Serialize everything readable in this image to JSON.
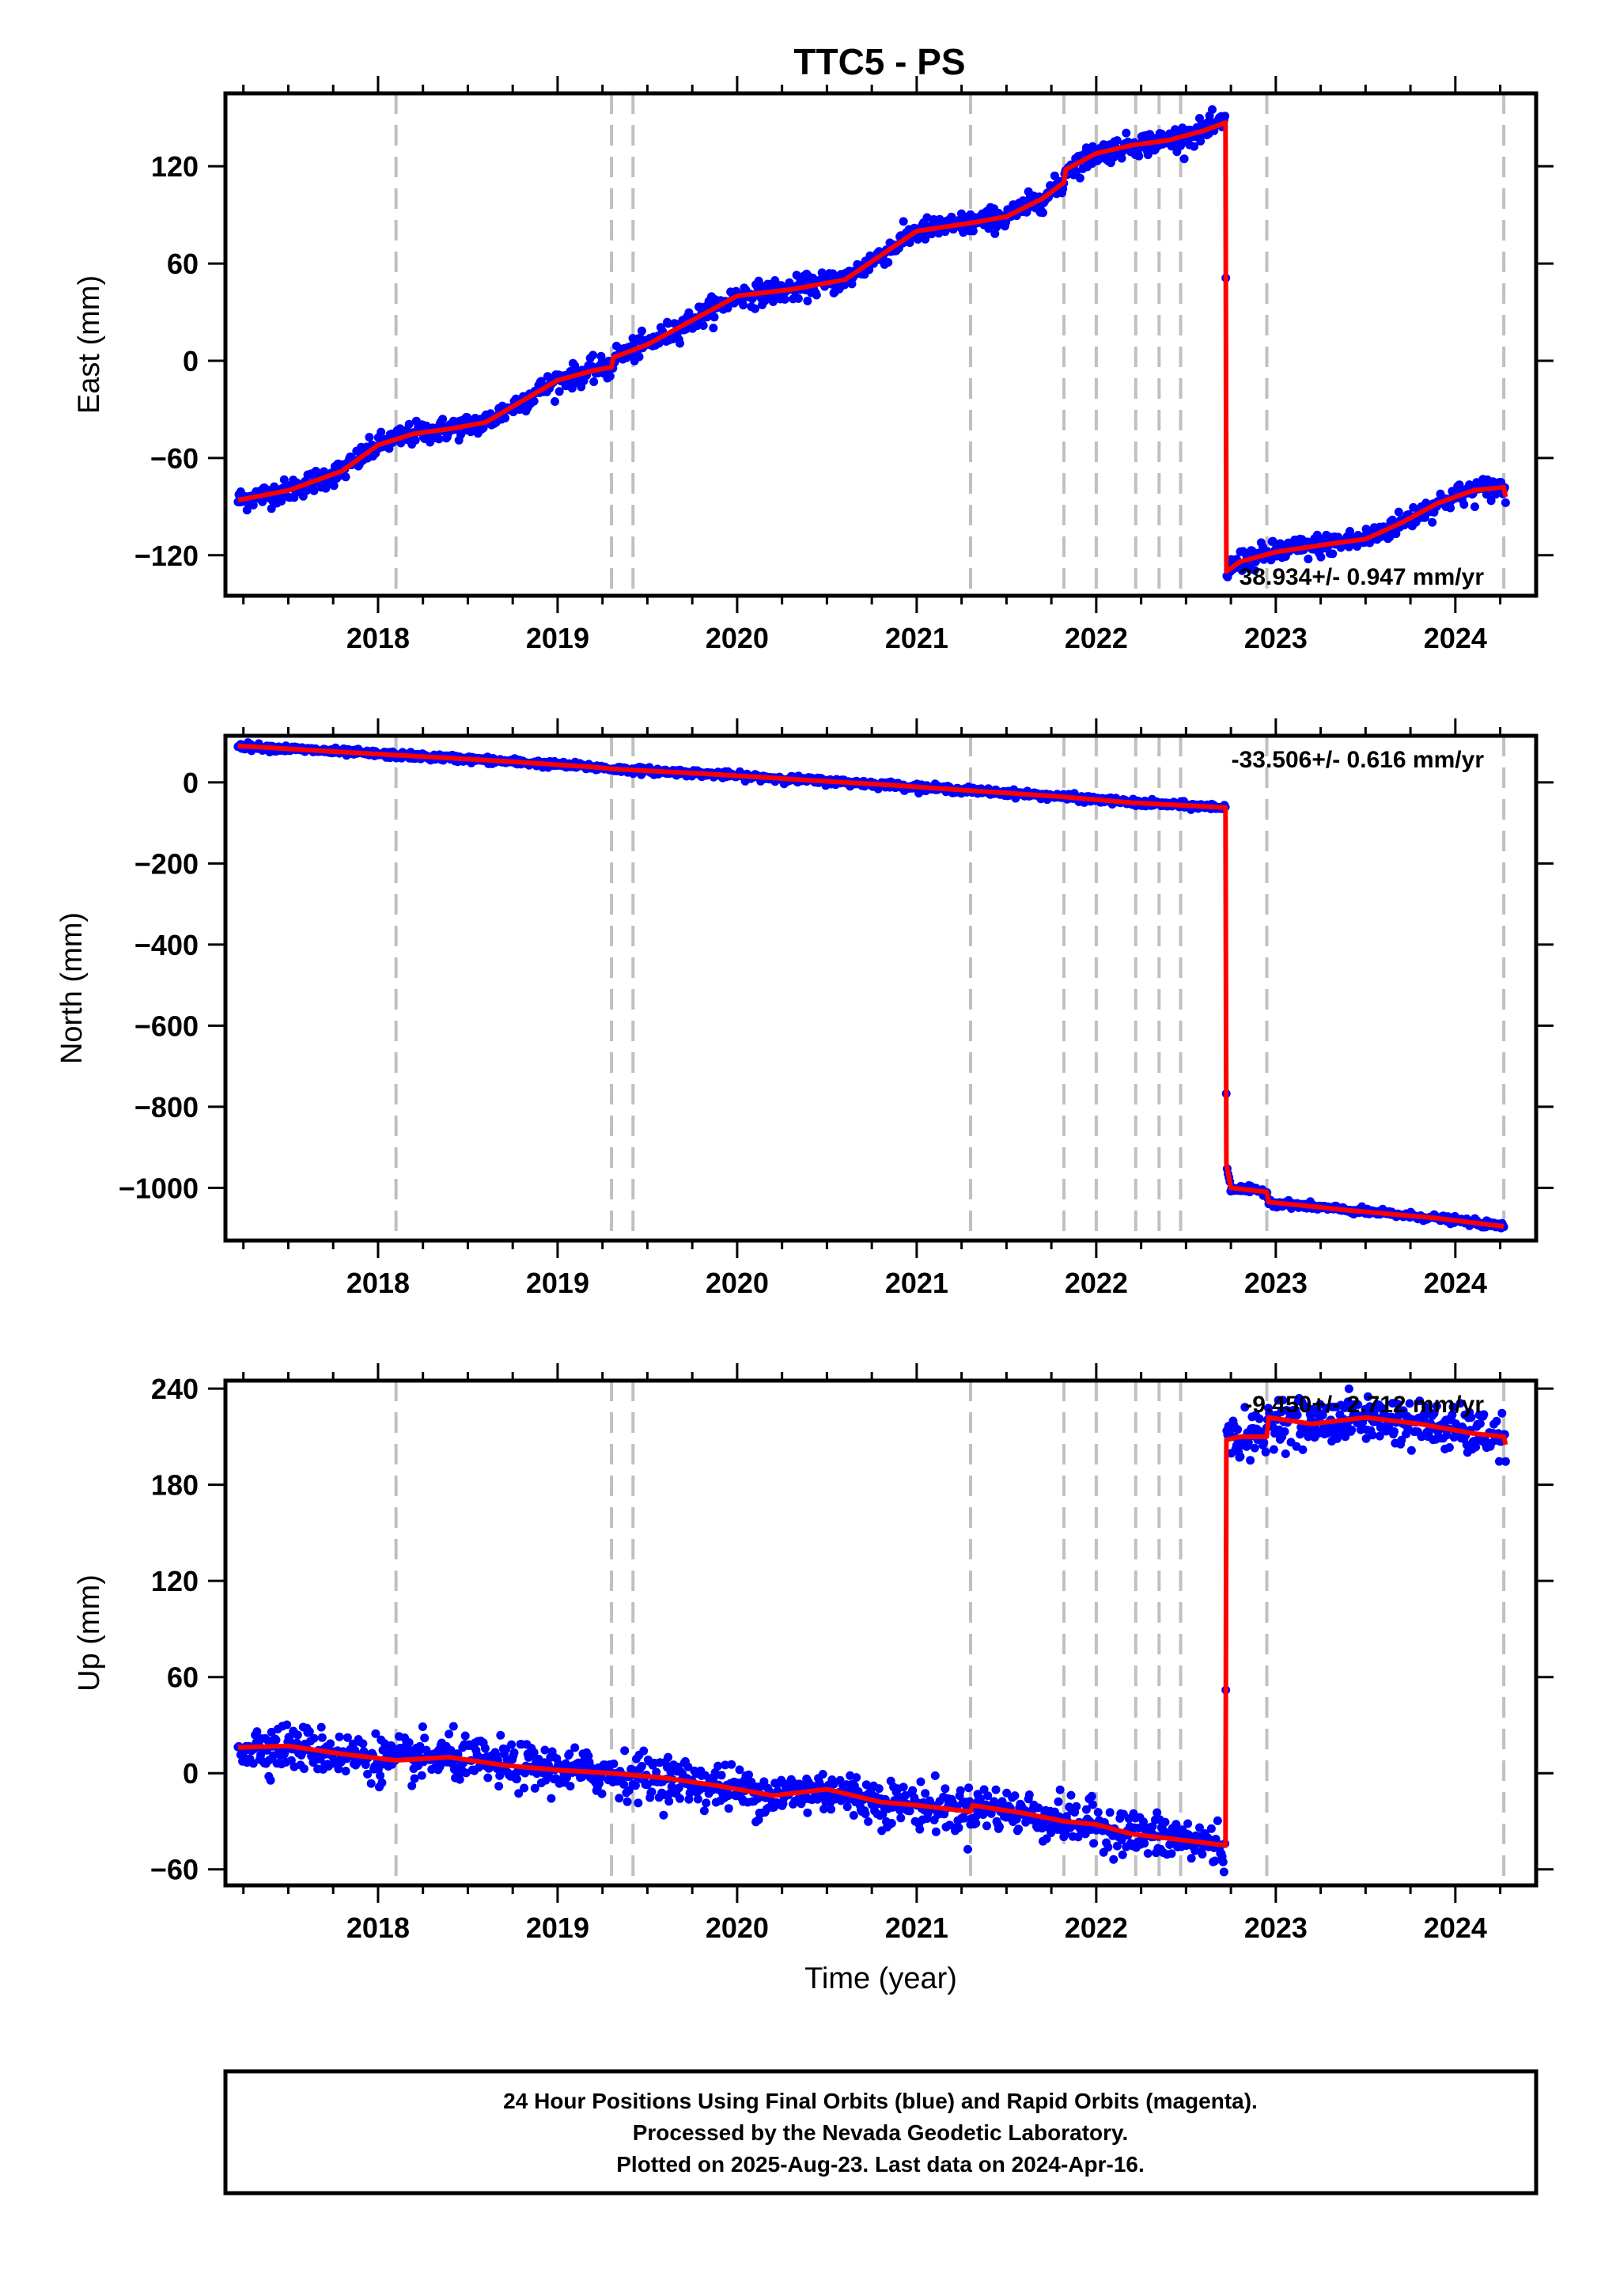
{
  "title": "TTC5 - PS",
  "footer": {
    "line1": "24 Hour Positions Using Final Orbits (blue) and Rapid Orbits (magenta).",
    "line2": "Processed by the Nevada Geodetic Laboratory.",
    "line3": "Plotted on 2025-Aug-23. Last data on 2024-Apr-16."
  },
  "colors": {
    "final_orbits": "#0000ff",
    "model": "#ff0000",
    "event_lines": "#c0c0c0",
    "frame": "#000000"
  },
  "chart_data": [
    {
      "type": "scatter",
      "name": "east",
      "ylabel": "East (mm)",
      "xlabel": "",
      "xlim": [
        2017.15,
        2024.45
      ],
      "ylim": [
        -145,
        165
      ],
      "xticks": [
        2018,
        2019,
        2020,
        2021,
        2022,
        2023,
        2024
      ],
      "yticks": [
        -120,
        -60,
        0,
        60,
        120
      ],
      "rate_label": "38.934+/- 0.947 mm/yr",
      "rate_position": "bottom-right",
      "offset_lines": [
        2018.1,
        2019.3,
        2019.42,
        2021.3,
        2021.82,
        2022.0,
        2022.22,
        2022.35,
        2022.47,
        2022.95,
        2024.27
      ],
      "model": {
        "x": [
          2017.22,
          2017.5,
          2017.8,
          2018.0,
          2018.2,
          2018.4,
          2018.6,
          2018.8,
          2019.0,
          2019.2,
          2019.3,
          2019.31,
          2019.5,
          2019.8,
          2020.0,
          2020.3,
          2020.6,
          2020.8,
          2021.0,
          2021.3,
          2021.5,
          2021.7,
          2021.82,
          2021.83,
          2022.0,
          2022.2,
          2022.4,
          2022.6,
          2022.72,
          2022.725,
          2022.8,
          2023.0,
          2023.3,
          2023.5,
          2023.7,
          2023.9,
          2024.1,
          2024.27,
          2024.28
        ],
        "y": [
          -86,
          -80,
          -68,
          -52,
          -45,
          -42,
          -38,
          -25,
          -12,
          -6,
          -4,
          2,
          10,
          28,
          40,
          44,
          50,
          65,
          80,
          85,
          89,
          100,
          110,
          118,
          128,
          133,
          136,
          142,
          147,
          -130,
          -124,
          -118,
          -113,
          -110,
          -100,
          -88,
          -80,
          -78,
          -84
        ]
      },
      "scatter_spread": 3.5
    },
    {
      "type": "scatter",
      "name": "north",
      "ylabel": "North (mm)",
      "xlabel": "",
      "xlim": [
        2017.15,
        2024.45
      ],
      "ylim": [
        -1130,
        115
      ],
      "xticks": [
        2018,
        2019,
        2020,
        2021,
        2022,
        2023,
        2024
      ],
      "yticks": [
        -1000,
        -800,
        -600,
        -400,
        -200,
        0
      ],
      "rate_label": "-33.506+/- 0.616 mm/yr",
      "rate_position": "top-right",
      "offset_lines": [
        2018.1,
        2019.3,
        2019.42,
        2021.3,
        2021.82,
        2022.0,
        2022.22,
        2022.35,
        2022.47,
        2022.95,
        2024.27
      ],
      "model": {
        "x": [
          2017.22,
          2018.0,
          2018.6,
          2019.2,
          2019.31,
          2019.8,
          2020.3,
          2020.8,
          2021.3,
          2021.8,
          2022.2,
          2022.5,
          2022.72,
          2022.725,
          2022.75,
          2022.95,
          2022.96,
          2023.4,
          2023.9,
          2024.27
        ],
        "y": [
          90,
          70,
          55,
          38,
          33,
          22,
          8,
          -5,
          -20,
          -35,
          -50,
          -57,
          -62,
          -940,
          -1000,
          -1010,
          -1035,
          -1055,
          -1075,
          -1095
        ]
      },
      "scatter_spread": 4
    },
    {
      "type": "scatter",
      "name": "up",
      "ylabel": "Up (mm)",
      "xlabel": "Time (year)",
      "xlim": [
        2017.15,
        2024.45
      ],
      "ylim": [
        -70,
        245
      ],
      "xticks": [
        2018,
        2019,
        2020,
        2021,
        2022,
        2023,
        2024
      ],
      "yticks": [
        -60,
        0,
        60,
        120,
        180,
        240
      ],
      "rate_label": "-9.450+/- 2.712 mm/yr",
      "rate_position": "top-right",
      "offset_lines": [
        2018.1,
        2019.3,
        2019.42,
        2021.3,
        2021.82,
        2022.0,
        2022.22,
        2022.35,
        2022.47,
        2022.95,
        2024.27
      ],
      "model": {
        "x": [
          2017.22,
          2017.5,
          2017.8,
          2018.1,
          2018.4,
          2018.7,
          2019.0,
          2019.3,
          2019.6,
          2019.9,
          2020.2,
          2020.5,
          2020.8,
          2021.0,
          2021.3,
          2021.31,
          2021.6,
          2021.82,
          2022.0,
          2022.2,
          2022.5,
          2022.72,
          2022.725,
          2022.8,
          2022.95,
          2022.96,
          2023.2,
          2023.5,
          2023.8,
          2024.1,
          2024.27,
          2024.28
        ],
        "y": [
          16,
          17,
          12,
          8,
          10,
          5,
          2,
          0,
          -3,
          -8,
          -14,
          -10,
          -18,
          -20,
          -24,
          -20,
          -25,
          -30,
          -32,
          -38,
          -42,
          -45,
          208,
          210,
          210,
          222,
          218,
          222,
          218,
          212,
          210,
          205
        ]
      },
      "scatter_spread": 7
    }
  ]
}
